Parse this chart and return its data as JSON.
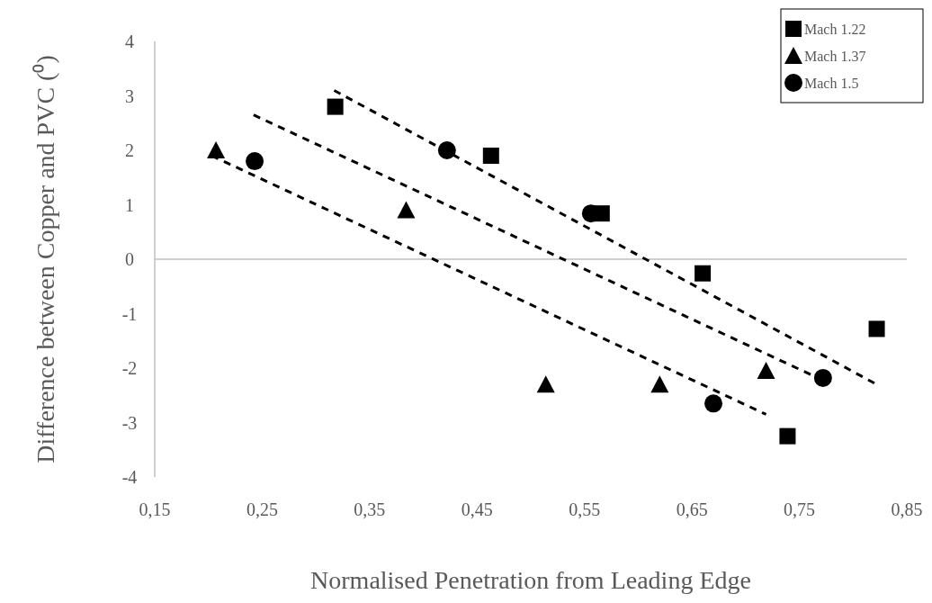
{
  "chart_data": {
    "type": "scatter",
    "xlabel": "Normalised Penetration from Leading Edge",
    "ylabel": "Difference between Copper and PVC (⁰)",
    "xlim": [
      0.15,
      0.85
    ],
    "xticks": [
      {
        "value": 0.15,
        "label": "0,15"
      },
      {
        "value": 0.25,
        "label": "0,25"
      },
      {
        "value": 0.35,
        "label": "0,35"
      },
      {
        "value": 0.45,
        "label": "0,45"
      },
      {
        "value": 0.55,
        "label": "0,55"
      },
      {
        "value": 0.65,
        "label": "0,65"
      },
      {
        "value": 0.75,
        "label": "0,75"
      },
      {
        "value": 0.85,
        "label": "0,85"
      }
    ],
    "ylim": [
      -4,
      4
    ],
    "yticks": [
      -4,
      -3,
      -2,
      -1,
      0,
      1,
      2,
      3,
      4
    ],
    "legend": "top right",
    "series": [
      {
        "name": "Mach 1.22",
        "color": "#000000",
        "marker": "square",
        "x": [
          0.318,
          0.463,
          0.566,
          0.66,
          0.822,
          0.739
        ],
        "values": [
          2.8,
          1.9,
          0.84,
          -0.26,
          -1.28,
          -3.25
        ]
      },
      {
        "name": "Mach 1.37",
        "color": "#000000",
        "marker": "triangle",
        "x": [
          0.207,
          0.384,
          0.514,
          0.62,
          0.719
        ],
        "values": [
          2.0,
          0.9,
          -2.3,
          -2.3,
          -2.05
        ]
      },
      {
        "name": "Mach 1.5",
        "color": "#000000",
        "marker": "circle",
        "x": [
          0.243,
          0.422,
          0.556,
          0.67,
          0.772
        ],
        "values": [
          1.8,
          2.0,
          0.84,
          -2.65,
          -2.18
        ]
      },
      {
        "type": "line",
        "color": "#000000",
        "line_style": "dashed",
        "marker": "none",
        "x": [
          0.317,
          0.822
        ],
        "values": [
          3.1,
          -2.3
        ]
      },
      {
        "type": "line",
        "color": "#000000",
        "line_style": "dashed",
        "marker": "none",
        "x": [
          0.242,
          0.764
        ],
        "values": [
          2.65,
          -2.15
        ]
      },
      {
        "type": "line",
        "color": "#000000",
        "line_style": "dashed",
        "marker": "none",
        "x": [
          0.203,
          0.719
        ],
        "values": [
          1.9,
          -2.85
        ]
      }
    ]
  }
}
